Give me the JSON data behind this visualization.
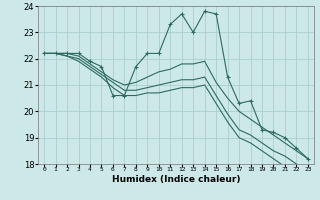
{
  "xlabel": "Humidex (Indice chaleur)",
  "x_values": [
    0,
    1,
    2,
    3,
    4,
    5,
    6,
    7,
    8,
    9,
    10,
    11,
    12,
    13,
    14,
    15,
    16,
    17,
    18,
    19,
    20,
    21,
    22,
    23
  ],
  "line1": [
    22.2,
    22.2,
    22.2,
    22.2,
    21.9,
    21.7,
    20.6,
    20.6,
    21.7,
    22.2,
    22.2,
    23.3,
    23.7,
    23.0,
    23.8,
    23.7,
    21.3,
    20.3,
    20.4,
    19.3,
    19.2,
    19.0,
    18.6,
    18.2
  ],
  "line2": [
    22.2,
    22.2,
    22.2,
    22.1,
    21.8,
    21.5,
    21.2,
    21.0,
    21.1,
    21.3,
    21.5,
    21.6,
    21.8,
    21.8,
    21.9,
    21.1,
    20.5,
    20.0,
    19.7,
    19.4,
    19.1,
    18.8,
    18.5,
    18.2
  ],
  "line3": [
    22.2,
    22.2,
    22.1,
    22.0,
    21.7,
    21.4,
    21.1,
    20.8,
    20.8,
    20.9,
    21.0,
    21.1,
    21.2,
    21.2,
    21.3,
    20.6,
    19.9,
    19.3,
    19.1,
    18.8,
    18.5,
    18.3,
    18.0,
    17.8
  ],
  "line4": [
    22.2,
    22.2,
    22.1,
    21.9,
    21.6,
    21.3,
    20.9,
    20.6,
    20.6,
    20.7,
    20.7,
    20.8,
    20.9,
    20.9,
    21.0,
    20.3,
    19.6,
    19.0,
    18.8,
    18.5,
    18.2,
    17.9,
    17.7,
    17.4
  ],
  "bg_color": "#cce8e8",
  "grid_color": "#aacece",
  "line_color": "#2e6b5e",
  "ylim": [
    18,
    24
  ],
  "yticks": [
    18,
    19,
    20,
    21,
    22,
    23,
    24
  ],
  "xtick_labels": [
    "0",
    "1",
    "2",
    "3",
    "4",
    "5",
    "6",
    "7",
    "8",
    "9",
    "10",
    "11",
    "12",
    "13",
    "14",
    "15",
    "16",
    "17",
    "18",
    "19",
    "20",
    "21",
    "22",
    "23"
  ]
}
